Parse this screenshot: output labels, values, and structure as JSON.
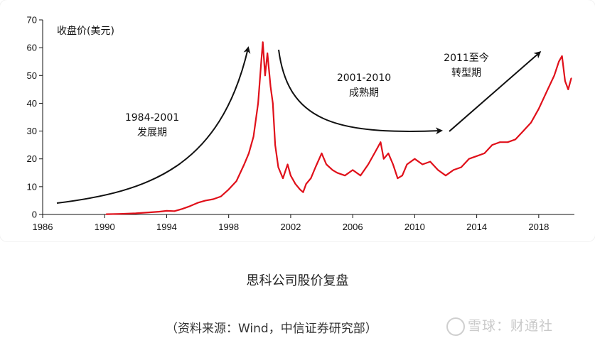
{
  "chart_data": {
    "type": "line",
    "ylabel": "收盘价(美元)",
    "xlim": [
      1986,
      2020.3
    ],
    "ylim": [
      0,
      70
    ],
    "x_ticks": [
      1986,
      1990,
      1994,
      1998,
      2002,
      2006,
      2010,
      2014,
      2018
    ],
    "y_ticks": [
      0,
      10,
      20,
      30,
      40,
      50,
      60,
      70
    ],
    "grid": false,
    "line_color": "#e0101a",
    "series": [
      {
        "x": [
          1990.1,
          1991.0,
          1992.0,
          1993.0,
          1993.5,
          1994.0,
          1994.5,
          1995.0,
          1995.5,
          1996.0,
          1996.5,
          1997.0,
          1997.5,
          1998.0,
          1998.5,
          1999.0,
          1999.3,
          1999.6,
          1999.9,
          2000.1,
          2000.2,
          2000.35,
          2000.5,
          2000.7,
          2000.85,
          2001.0,
          2001.2,
          2001.5,
          2001.8,
          2002.0,
          2002.3,
          2002.6,
          2002.8,
          2003.0,
          2003.3,
          2003.6,
          2004.0,
          2004.3,
          2004.7,
          2005.0,
          2005.5,
          2006.0,
          2006.5,
          2007.0,
          2007.5,
          2007.8,
          2008.0,
          2008.3,
          2008.6,
          2008.9,
          2009.2,
          2009.5,
          2010.0,
          2010.5,
          2011.0,
          2011.5,
          2012.0,
          2012.5,
          2013.0,
          2013.5,
          2014.0,
          2014.5,
          2015.0,
          2015.5,
          2016.0,
          2016.5,
          2017.0,
          2017.5,
          2018.0,
          2018.5,
          2019.0,
          2019.3,
          2019.5,
          2019.7,
          2019.9,
          2020.1
        ],
        "y": [
          0.1,
          0.2,
          0.4,
          0.8,
          1.0,
          1.3,
          1.2,
          2.0,
          3.0,
          4.2,
          5.0,
          5.5,
          6.5,
          9.0,
          12.0,
          18.0,
          22.0,
          28.0,
          40.0,
          55.0,
          62.0,
          50.0,
          58.0,
          46.0,
          40.0,
          25.0,
          17.0,
          13.0,
          18.0,
          14.0,
          11.0,
          9.0,
          8.0,
          11.0,
          13.0,
          17.0,
          22.0,
          18.0,
          16.0,
          15.0,
          14.0,
          16.0,
          14.0,
          18.0,
          23.0,
          26.0,
          20.0,
          22.0,
          18.0,
          13.0,
          14.0,
          18.0,
          20.0,
          18.0,
          19.0,
          16.0,
          14.0,
          16.0,
          17.0,
          20.0,
          21.0,
          22.0,
          25.0,
          26.0,
          26.0,
          27.0,
          30.0,
          33.0,
          38.0,
          44.0,
          50.0,
          55.0,
          57.0,
          48.0,
          45.0,
          49.0
        ]
      }
    ],
    "annotations": [
      {
        "lines": [
          "1984-2001",
          "发展期"
        ]
      },
      {
        "lines": [
          "2001-2010",
          "成熟期"
        ]
      },
      {
        "lines": [
          "2011至今",
          "转型期"
        ]
      }
    ]
  },
  "caption": "思科公司股价复盘",
  "source": "（资料来源：Wind，中信证券研究部）",
  "watermark": "雪球：财通社"
}
